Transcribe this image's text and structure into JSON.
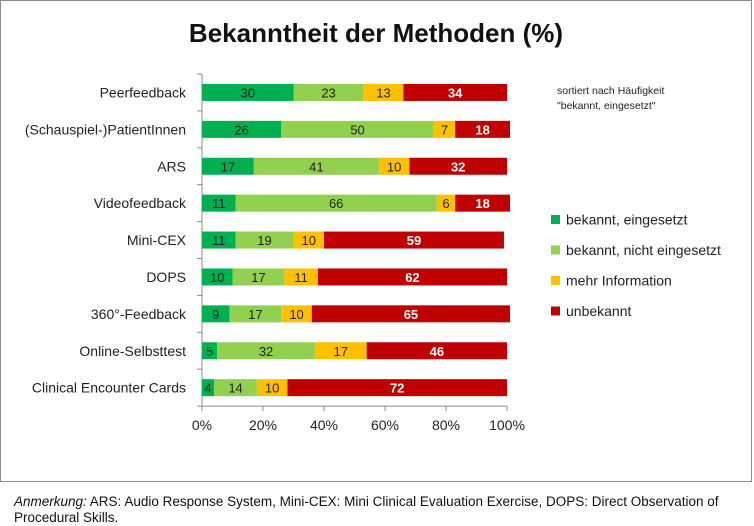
{
  "chart_data": {
    "type": "bar",
    "orientation": "horizontal",
    "stacked": true,
    "title": "Bekanntheit der Methoden (%)",
    "categories": [
      "Peerfeedback",
      "(Schauspiel-)PatientInnen",
      "ARS",
      "Videofeedback",
      "Mini-CEX",
      "DOPS",
      "360°-Feedback",
      "Online-Selbsttest",
      "Clinical Encounter Cards"
    ],
    "series": [
      {
        "name": "bekannt, eingesetzt",
        "color": "#00b050",
        "values": [
          30,
          26,
          17,
          11,
          11,
          10,
          9,
          5,
          4
        ]
      },
      {
        "name": "bekannt, nicht eingesetzt",
        "color": "#92d050",
        "values": [
          23,
          50,
          41,
          66,
          19,
          17,
          17,
          32,
          14
        ]
      },
      {
        "name": "mehr Information",
        "color": "#ffc000",
        "values": [
          13,
          7,
          10,
          6,
          10,
          11,
          10,
          17,
          10
        ]
      },
      {
        "name": "unbekannt",
        "color": "#c00000",
        "values": [
          34,
          18,
          32,
          18,
          59,
          62,
          65,
          46,
          72
        ]
      }
    ],
    "x_ticks": [
      "0%",
      "20%",
      "40%",
      "60%",
      "80%",
      "100%"
    ],
    "xlim": [
      0,
      100
    ],
    "grid": false,
    "legend_position": "right",
    "annotation": {
      "line1": "sortiert nach Häufigkeit",
      "line2": "\"bekannt, eingesetzt\""
    }
  },
  "caption": {
    "lead": "Anmerkung:",
    "text": " ARS: Audio Response System, Mini-CEX: Mini Clinical Evaluation Exercise, DOPS: Direct Observation of Procedural Skills."
  }
}
